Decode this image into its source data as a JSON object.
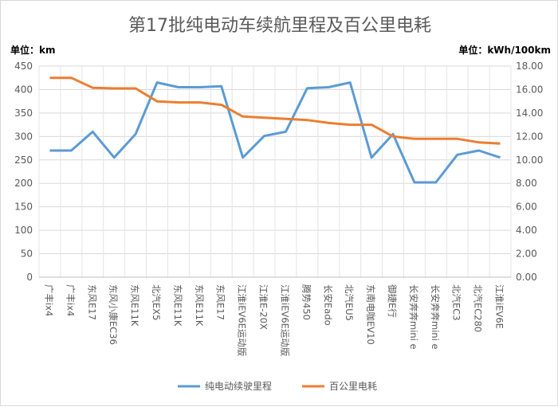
{
  "chart_data": {
    "type": "line",
    "title": "第17批纯电动车续航里程及百公里电耗",
    "left_unit": "单位：km",
    "right_unit": "单位：kWh/100km",
    "categories": [
      "广丰ix4",
      "广丰ix4",
      "东风E17",
      "东风小康EC36",
      "东风E11K",
      "北汽EX5",
      "东风E11K",
      "东风E11K",
      "东风E17",
      "江淮iEV6E运动版",
      "江淮E-20X",
      "江淮iEV6E运动版",
      "腾势450",
      "长安Eado",
      "北汽EU5",
      "东南电咖EV10",
      "御捷E行",
      "长安奔奔mini e",
      "长安奔奔mini e",
      "北汽EC3",
      "北汽EC280",
      "江淮iEV6E"
    ],
    "y_left": {
      "min": 0,
      "max": 450,
      "step": 50,
      "ticks": [
        "0",
        "50",
        "100",
        "150",
        "200",
        "250",
        "300",
        "350",
        "400",
        "450"
      ]
    },
    "y_right": {
      "min": 0,
      "max": 18,
      "step": 2,
      "ticks": [
        "0.00",
        "2.00",
        "4.00",
        "6.00",
        "8.00",
        "10.00",
        "12.00",
        "14.00",
        "16.00",
        "18.00"
      ]
    },
    "grid": true,
    "legend_position": "bottom",
    "series": [
      {
        "name": "纯电动续驶里程",
        "axis": "left",
        "color": "#5b9bd5",
        "values": [
          270,
          270,
          310,
          255,
          305,
          415,
          405,
          405,
          407,
          255,
          301,
          310,
          403,
          405,
          415,
          255,
          305,
          202,
          202,
          261,
          270,
          255
        ]
      },
      {
        "name": "百公里电耗",
        "axis": "right",
        "color": "#ed7d31",
        "values": [
          17.0,
          17.0,
          16.15,
          16.1,
          16.1,
          15.0,
          14.9,
          14.9,
          14.7,
          13.7,
          13.6,
          13.5,
          13.4,
          13.15,
          13.0,
          13.0,
          12.0,
          11.8,
          11.8,
          11.8,
          11.5,
          11.4
        ]
      }
    ]
  }
}
